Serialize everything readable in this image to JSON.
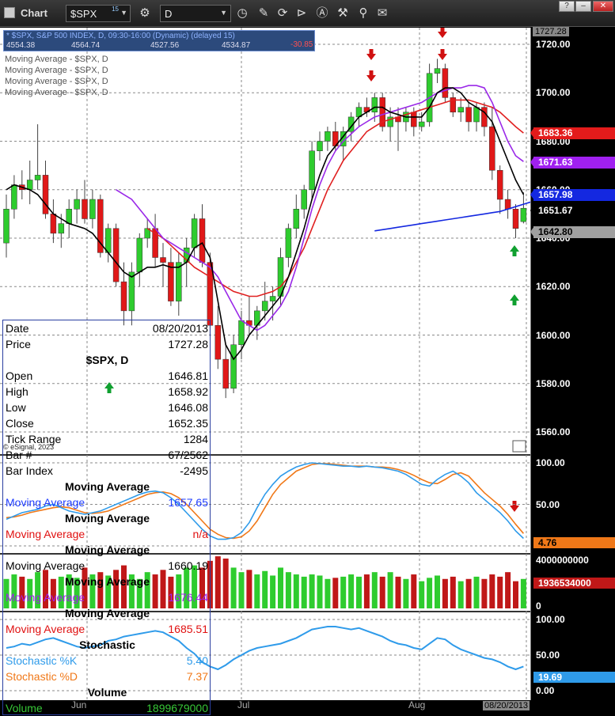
{
  "window": {
    "title": "Chart",
    "symbol": "$SPX",
    "symbol_sup": "15",
    "interval": "D",
    "buttons": [
      "?",
      "–",
      "□",
      "✕"
    ]
  },
  "toolbar_icons": [
    "clock-icon",
    "pencil-icon",
    "cycle-icon",
    "play-icon",
    "alert-icon",
    "tools-icon",
    "comment-icon"
  ],
  "legend": {
    "line1": "* $SPX, S&P 500 INDEX, D, 09:30-16:00 (Dynamic) (delayed 15)",
    "line1_change": "-30.85",
    "line2": [
      "4554.38",
      "4564.74",
      "4527.56",
      "4534.87"
    ],
    "ma_labels": [
      "Moving Average - $SPX, D",
      "Moving Average - $SPX, D",
      "Moving Average - $SPX, D",
      "Moving Average - $SPX, D"
    ]
  },
  "price_axis": {
    "ticks": [
      "1720.00",
      "1700.00",
      "1680.00",
      "1660.00",
      "1640.00",
      "1620.00",
      "1600.00",
      "1580.00",
      "1560.00"
    ],
    "top_label": "1727.28"
  },
  "price_labels": [
    {
      "value": "1683.36",
      "color": "#e31b1b"
    },
    {
      "value": "1671.63",
      "color": "#a020f0"
    },
    {
      "value": "1657.98",
      "color": "#1428e0"
    },
    {
      "value": "1651.67",
      "color": "#000000"
    },
    {
      "value": "1642.80",
      "color": "#a0a0a0"
    }
  ],
  "stoch_axis": {
    "ticks": [
      "100.00",
      "50.00"
    ],
    "label": "4.76"
  },
  "volume_axis": {
    "ticks": [
      "4000000000",
      "0"
    ],
    "label": "1936534000"
  },
  "stoch2_axis": {
    "ticks": [
      "100.00",
      "50.00",
      "0.00"
    ],
    "label": "19.69"
  },
  "x_axis": {
    "labels": [
      "Jun",
      "Jul",
      "Aug"
    ],
    "date_label": "08/20/2013"
  },
  "watermark": "© eSignal, 2023",
  "info": {
    "rows": [
      {
        "k": "Date",
        "v": "08/20/2013"
      },
      {
        "k": "Price",
        "v": "1727.28"
      },
      {
        "h": "$SPX, D"
      },
      {
        "k": "Open",
        "v": "1646.81"
      },
      {
        "k": "High",
        "v": "1658.92"
      },
      {
        "k": "Low",
        "v": "1646.08"
      },
      {
        "k": "Close",
        "v": "1652.35"
      },
      {
        "k": "Tick Range",
        "v": "1284"
      },
      {
        "k": "Bar #",
        "v": "67/2562"
      },
      {
        "k": "Bar Index",
        "v": "-2495"
      },
      {
        "h": "Moving Average"
      },
      {
        "k": "Moving Average",
        "v": "1657.65",
        "c": "#1e3cff"
      },
      {
        "h": "Moving Average"
      },
      {
        "k": "Moving Average",
        "v": "n/a",
        "c": "#e01010"
      },
      {
        "h": "Moving Average"
      },
      {
        "k": "Moving Average",
        "v": "1660.19",
        "c": "#000000"
      },
      {
        "h": "Moving Average"
      },
      {
        "k": "Moving Average",
        "v": "1676.44",
        "c": "#a020f0"
      },
      {
        "h": "Moving Average"
      },
      {
        "k": "Moving Average",
        "v": "1685.51",
        "c": "#e01010"
      },
      {
        "h": "Stochastic"
      },
      {
        "k": "Stochastic %K",
        "v": "5.40",
        "c": "#2f9bea"
      },
      {
        "k": "Stochastic %D",
        "v": "7.37",
        "c": "#f07818"
      },
      {
        "h": "Volume"
      },
      {
        "k": "Volume",
        "v": "1899679000",
        "c": "#37c837"
      }
    ]
  },
  "colors": {
    "up": "#2ecc2e",
    "down": "#e01818",
    "grid": "#8a8a8a",
    "ma_black": "#000000",
    "ma_purple": "#9a28e8",
    "ma_red": "#e02020",
    "ma_blue": "#1428e0",
    "stoch_k": "#2f9bea",
    "stoch_d": "#f07818"
  },
  "chart_data": {
    "type": "candlestick",
    "candles": [
      [
        1638,
        1658,
        1632,
        1652
      ],
      [
        1652,
        1666,
        1648,
        1662
      ],
      [
        1662,
        1668,
        1656,
        1660
      ],
      [
        1660,
        1672,
        1654,
        1664
      ],
      [
        1664,
        1687,
        1660,
        1666
      ],
      [
        1666,
        1672,
        1648,
        1650
      ],
      [
        1650,
        1656,
        1638,
        1642
      ],
      [
        1642,
        1650,
        1636,
        1646
      ],
      [
        1646,
        1656,
        1640,
        1652
      ],
      [
        1652,
        1660,
        1646,
        1656
      ],
      [
        1656,
        1664,
        1646,
        1648
      ],
      [
        1648,
        1660,
        1644,
        1656
      ],
      [
        1656,
        1658,
        1632,
        1634
      ],
      [
        1634,
        1646,
        1630,
        1644
      ],
      [
        1644,
        1646,
        1620,
        1622
      ],
      [
        1622,
        1630,
        1604,
        1610
      ],
      [
        1610,
        1630,
        1604,
        1626
      ],
      [
        1626,
        1642,
        1620,
        1640
      ],
      [
        1640,
        1648,
        1636,
        1644
      ],
      [
        1644,
        1650,
        1628,
        1632
      ],
      [
        1632,
        1638,
        1620,
        1630
      ],
      [
        1630,
        1636,
        1612,
        1614
      ],
      [
        1614,
        1634,
        1608,
        1630
      ],
      [
        1630,
        1640,
        1620,
        1636
      ],
      [
        1636,
        1650,
        1632,
        1648
      ],
      [
        1648,
        1654,
        1628,
        1630
      ],
      [
        1630,
        1634,
        1600,
        1604
      ],
      [
        1604,
        1612,
        1586,
        1590
      ],
      [
        1590,
        1596,
        1574,
        1578
      ],
      [
        1578,
        1600,
        1576,
        1596
      ],
      [
        1596,
        1610,
        1590,
        1606
      ],
      [
        1606,
        1616,
        1600,
        1604
      ],
      [
        1604,
        1612,
        1598,
        1610
      ],
      [
        1610,
        1622,
        1606,
        1614
      ],
      [
        1614,
        1620,
        1606,
        1616
      ],
      [
        1616,
        1636,
        1612,
        1632
      ],
      [
        1632,
        1646,
        1628,
        1644
      ],
      [
        1644,
        1658,
        1640,
        1652
      ],
      [
        1652,
        1662,
        1648,
        1660
      ],
      [
        1660,
        1680,
        1656,
        1676
      ],
      [
        1676,
        1684,
        1672,
        1680
      ],
      [
        1680,
        1686,
        1676,
        1684
      ],
      [
        1684,
        1688,
        1676,
        1678
      ],
      [
        1678,
        1686,
        1672,
        1684
      ],
      [
        1684,
        1692,
        1680,
        1690
      ],
      [
        1690,
        1696,
        1686,
        1694
      ],
      [
        1694,
        1698,
        1690,
        1692
      ],
      [
        1692,
        1700,
        1688,
        1698
      ],
      [
        1698,
        1700,
        1684,
        1686
      ],
      [
        1686,
        1694,
        1680,
        1690
      ],
      [
        1690,
        1694,
        1676,
        1688
      ],
      [
        1688,
        1694,
        1684,
        1692
      ],
      [
        1692,
        1694,
        1682,
        1686
      ],
      [
        1686,
        1692,
        1684,
        1688
      ],
      [
        1688,
        1712,
        1686,
        1708
      ],
      [
        1708,
        1714,
        1704,
        1710
      ],
      [
        1710,
        1712,
        1696,
        1698
      ],
      [
        1698,
        1700,
        1690,
        1692
      ],
      [
        1692,
        1698,
        1688,
        1694
      ],
      [
        1694,
        1696,
        1684,
        1688
      ],
      [
        1688,
        1696,
        1684,
        1694
      ],
      [
        1694,
        1696,
        1682,
        1686
      ],
      [
        1686,
        1694,
        1664,
        1668
      ],
      [
        1668,
        1670,
        1650,
        1656
      ],
      [
        1656,
        1660,
        1648,
        1652
      ],
      [
        1652,
        1654,
        1640,
        1644
      ],
      [
        1646.81,
        1658.92,
        1646.08,
        1652.35
      ]
    ],
    "ma_black": [
      1660,
      1662,
      1661,
      1660,
      1658,
      1654,
      1650,
      1648,
      1646,
      1645,
      1644,
      1642,
      1638,
      1634,
      1630,
      1626,
      1624,
      1626,
      1628,
      1628,
      1629,
      1628,
      1628,
      1630,
      1636,
      1638,
      1632,
      1614,
      1596,
      1590,
      1594,
      1600,
      1604,
      1608,
      1612,
      1616,
      1624,
      1634,
      1644,
      1656,
      1666,
      1674,
      1678,
      1682,
      1686,
      1690,
      1692,
      1694,
      1694,
      1692,
      1691,
      1690,
      1690,
      1690,
      1694,
      1700,
      1702,
      1702,
      1700,
      1696,
      1694,
      1692,
      1688,
      1680,
      1672,
      1664,
      1658
    ],
    "ma_purple": [
      null,
      null,
      null,
      null,
      null,
      null,
      null,
      null,
      null,
      null,
      null,
      null,
      null,
      null,
      1660,
      1658,
      1656,
      1652,
      1648,
      1644,
      1640,
      1638,
      1636,
      1634,
      1632,
      1630,
      1628,
      1624,
      1618,
      1612,
      1606,
      1604,
      1602,
      1604,
      1608,
      1612,
      1618,
      1628,
      1640,
      1652,
      1662,
      1670,
      1676,
      1680,
      1683,
      1686,
      1688,
      1690,
      1691,
      1692,
      1693,
      1694,
      1695,
      1696,
      1698,
      1700,
      1701,
      1702,
      1702,
      1703,
      1703,
      1702,
      1696,
      1688,
      1680,
      1674,
      1671.6
    ],
    "ma_red": [
      null,
      null,
      null,
      null,
      null,
      null,
      null,
      null,
      null,
      null,
      null,
      null,
      null,
      null,
      null,
      null,
      null,
      null,
      1644,
      1642,
      1640,
      1637,
      1634,
      1631,
      1628,
      1626,
      1624,
      1622,
      1620,
      1618,
      1617,
      1616,
      1616,
      1617,
      1618,
      1620,
      1624,
      1630,
      1636,
      1644,
      1652,
      1660,
      1666,
      1672,
      1676,
      1680,
      1684,
      1686,
      1688,
      1689,
      1690,
      1691,
      1692,
      1693,
      1694,
      1695,
      1696,
      1697,
      1697,
      1697,
      1696,
      1695,
      1694,
      1692,
      1689,
      1686,
      1683.4
    ],
    "ma_blue_start": 47,
    "ma_blue": [
      1643,
      1643.5,
      1644,
      1644.5,
      1645,
      1645.5,
      1646,
      1646.5,
      1647,
      1647.5,
      1648,
      1648.5,
      1649,
      1649.5,
      1650,
      1650.5,
      1651,
      1652,
      1653,
      1654,
      1655,
      1656.5
    ],
    "stoch_k": [
      32,
      36,
      40,
      42,
      44,
      48,
      50,
      46,
      42,
      40,
      38,
      40,
      42,
      46,
      50,
      54,
      58,
      62,
      65,
      66,
      64,
      58,
      50,
      40,
      30,
      20,
      12,
      8,
      8,
      10,
      16,
      28,
      46,
      62,
      74,
      84,
      90,
      95,
      98,
      100,
      99,
      98,
      97,
      96,
      96,
      95,
      96,
      95,
      94,
      92,
      90,
      86,
      80,
      74,
      72,
      80,
      86,
      90,
      84,
      76,
      64,
      56,
      48,
      40,
      30,
      18,
      9
    ],
    "stoch_d": [
      34,
      35,
      37,
      40,
      42,
      44,
      46,
      47,
      46,
      43,
      40,
      39,
      40,
      42,
      46,
      50,
      54,
      58,
      62,
      64,
      65,
      63,
      58,
      50,
      40,
      30,
      20,
      14,
      10,
      9,
      11,
      18,
      30,
      46,
      62,
      74,
      82,
      90,
      94,
      98,
      99,
      99,
      98,
      97,
      96,
      96,
      96,
      95,
      95,
      94,
      92,
      89,
      85,
      80,
      76,
      75,
      80,
      86,
      88,
      84,
      74,
      64,
      56,
      48,
      38,
      26,
      15
    ],
    "volume": [
      2.6,
      3.0,
      2.8,
      2.6,
      3.2,
      3.4,
      2.6,
      2.8,
      3.0,
      2.7,
      3.6,
      3.0,
      3.2,
      2.9,
      3.4,
      3.8,
      3.0,
      2.6,
      3.2,
      3.0,
      3.4,
      2.8,
      3.0,
      3.6,
      3.8,
      3.6,
      4.2,
      4.6,
      4.4,
      3.6,
      3.2,
      3.4,
      3.0,
      3.3,
      2.9,
      3.6,
      3.2,
      3.0,
      2.8,
      3.0,
      2.9,
      2.6,
      2.7,
      2.8,
      3.0,
      2.8,
      3.0,
      3.2,
      2.8,
      3.2,
      2.8,
      2.6,
      3.0,
      2.4,
      2.7,
      2.9,
      2.6,
      2.8,
      2.4,
      2.6,
      2.8,
      2.6,
      3.0,
      2.8,
      3.2,
      2.4,
      2.6
    ],
    "stoch2": [
      60,
      62,
      66,
      64,
      68,
      72,
      74,
      70,
      66,
      62,
      60,
      62,
      64,
      70,
      72,
      76,
      78,
      80,
      82,
      84,
      82,
      76,
      70,
      60,
      52,
      40,
      34,
      30,
      36,
      44,
      50,
      56,
      60,
      62,
      64,
      66,
      70,
      74,
      80,
      86,
      88,
      90,
      90,
      88,
      86,
      88,
      84,
      80,
      76,
      70,
      66,
      64,
      60,
      58,
      66,
      74,
      72,
      64,
      58,
      54,
      50,
      46,
      44,
      40,
      34,
      30,
      34
    ]
  }
}
